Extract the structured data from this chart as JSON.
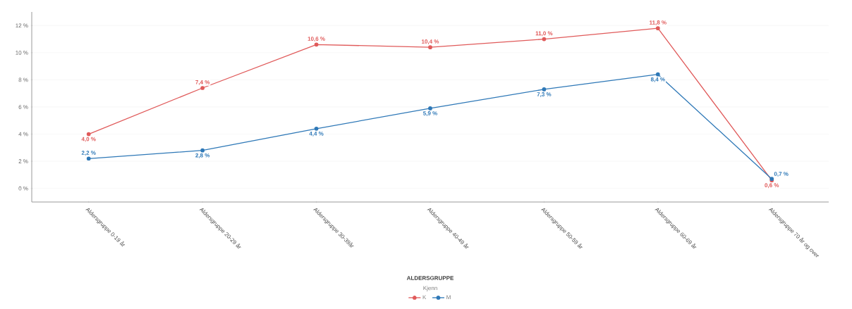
{
  "chart_data": {
    "type": "line",
    "xlabel": "ALDERSGRUPPE",
    "legend_title": "Kjenn",
    "categories": [
      "Aldersgruppe 0-19 år",
      "Aldersgruppe 20-29 år",
      "Aldersgruppe 30-39år",
      "Aldersgruppe 40-49 år",
      "Aldersgruppe 50-59 år",
      "Aldersgruppe 60-69 år",
      "Aldersgruppe 70 år og over"
    ],
    "series": [
      {
        "name": "K",
        "color": "#e05a5a",
        "values": [
          4.0,
          7.4,
          10.6,
          10.4,
          11.0,
          11.8,
          0.6
        ],
        "value_labels": [
          "4,0 %",
          "7,4 %",
          "10,6 %",
          "10,4 %",
          "11,0 %",
          "11,8 %",
          "0,6 %"
        ]
      },
      {
        "name": "M",
        "color": "#2e78b7",
        "values": [
          2.2,
          2.8,
          4.4,
          5.9,
          7.3,
          8.4,
          0.7
        ],
        "value_labels": [
          "2,2 %",
          "2,8 %",
          "4,4 %",
          "5,9 %",
          "7,3 %",
          "8,4 %",
          "0,7 %"
        ]
      }
    ],
    "ylim": [
      -1,
      13
    ],
    "yticks": [
      {
        "value": 0,
        "label": "0 %"
      },
      {
        "value": 2,
        "label": "2 %"
      },
      {
        "value": 4,
        "label": "4 %"
      },
      {
        "value": 6,
        "label": "6 %"
      },
      {
        "value": 8,
        "label": "8 %"
      },
      {
        "value": 10,
        "label": "10 %"
      },
      {
        "value": 12,
        "label": "12 %"
      }
    ],
    "grid": "y",
    "legend": "bottom",
    "marker": "circle",
    "line_style": "solid"
  }
}
